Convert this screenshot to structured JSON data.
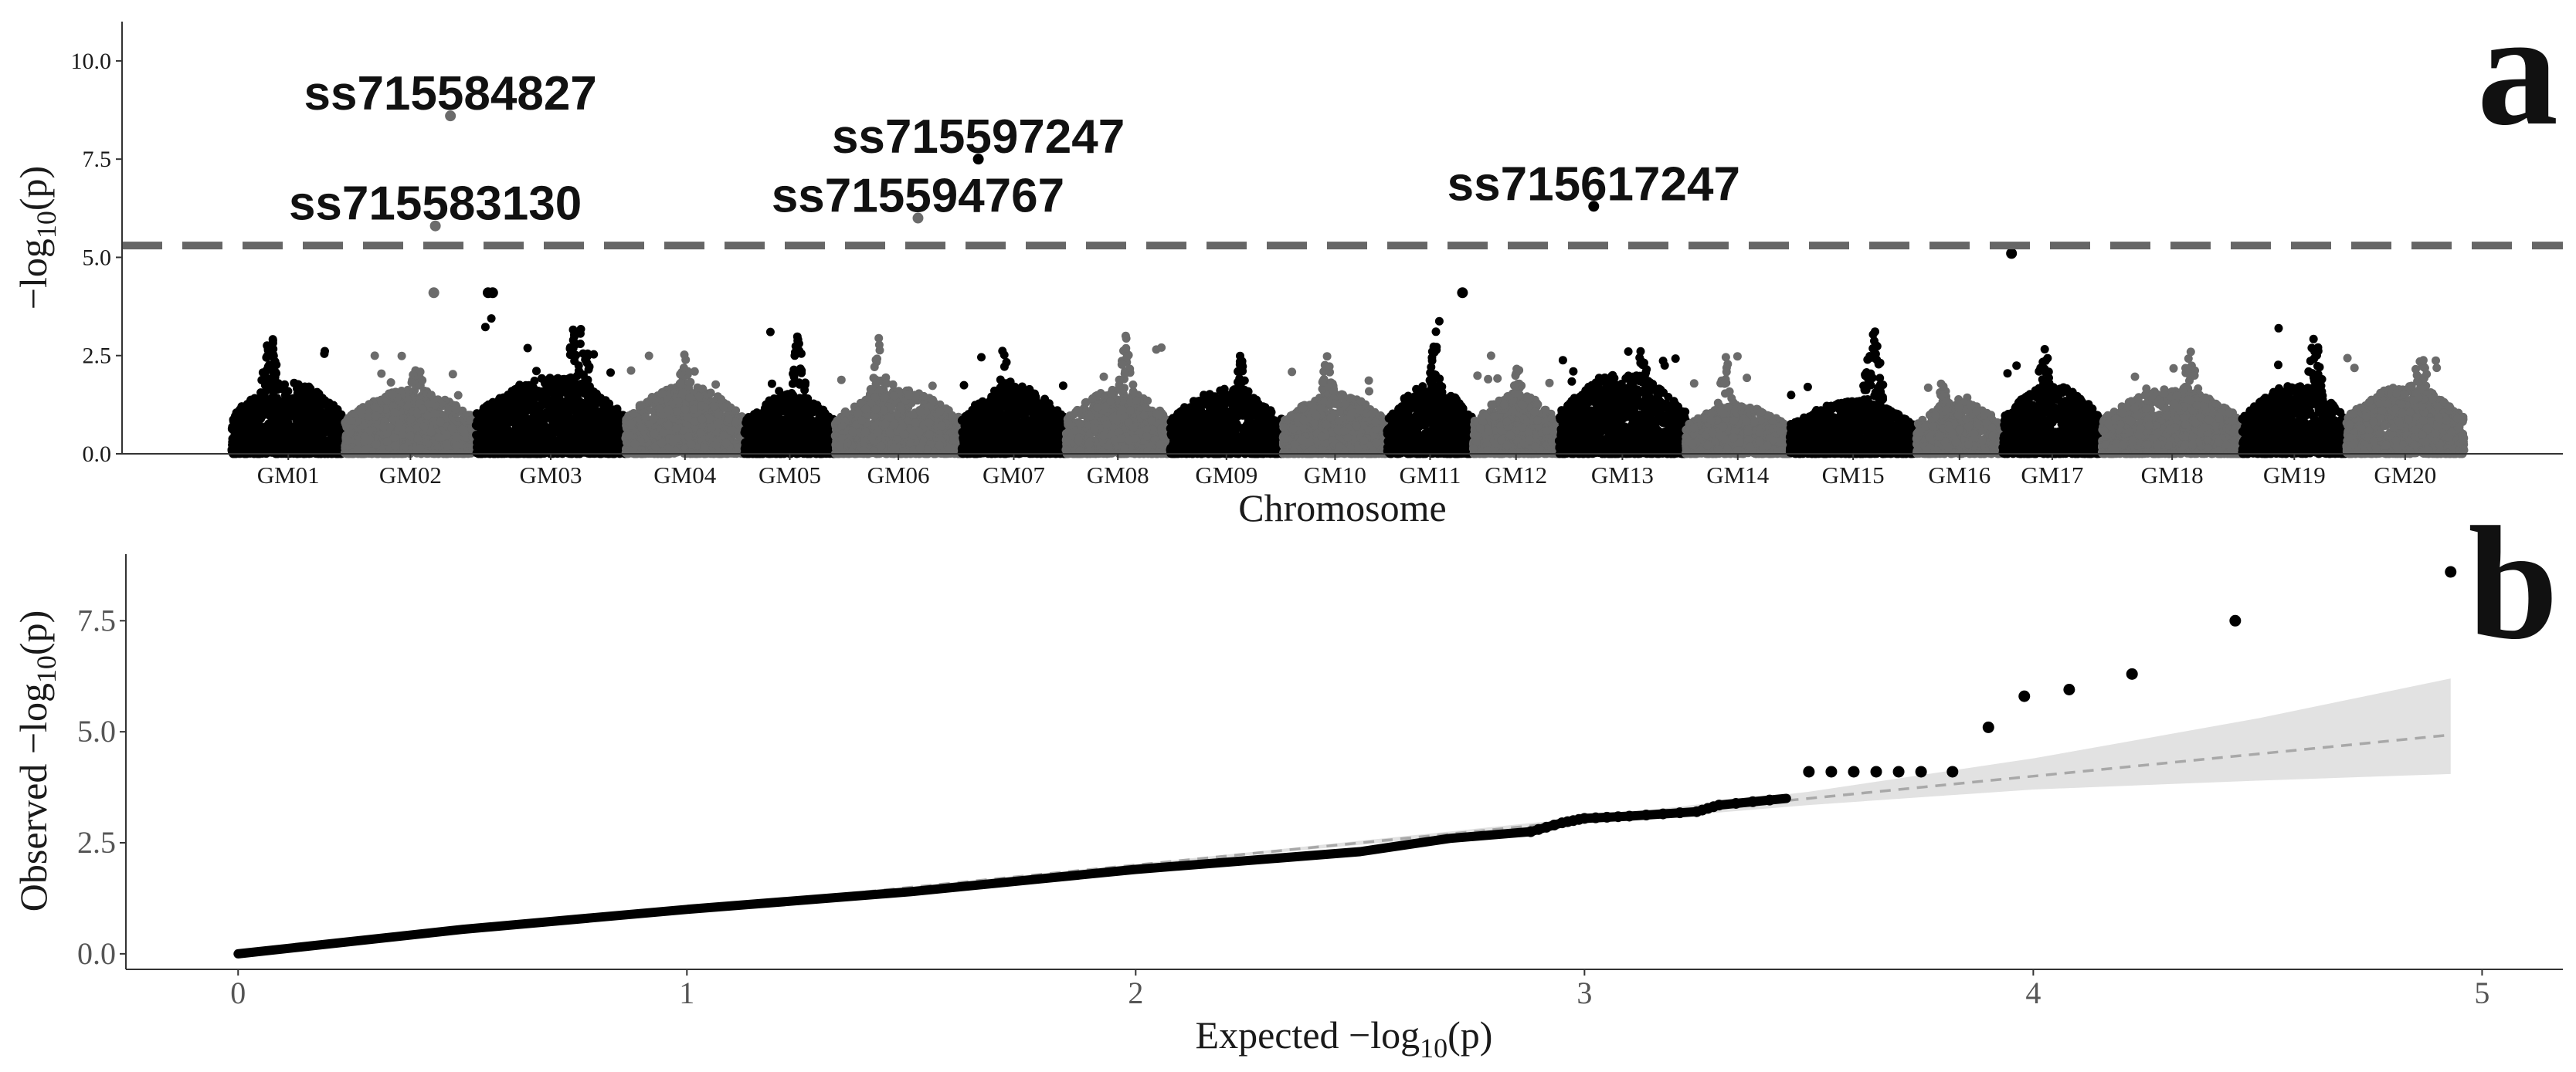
{
  "colors": {
    "odd_chromosome": "#000000",
    "even_chromosome": "#6b6b6b",
    "threshold_line": "#666666",
    "confidence_band": "#e2e2e2",
    "expected_line": "#a8a8a8",
    "qq_points": "#000000"
  },
  "chart_data": [
    {
      "type": "scatter",
      "subtype": "manhattan",
      "panel_label": "a",
      "xlabel": "Chromosome",
      "ylabel": "−log₁₀(p)",
      "ylabel_parts": {
        "prefix": "−log",
        "subscript": "10",
        "suffix": "(p)"
      },
      "ylim": [
        0,
        11
      ],
      "yticks": [
        0.0,
        2.5,
        5.0,
        7.5,
        10.0
      ],
      "ytick_labels": [
        "0.0",
        "2.5",
        "5.0",
        "7.5",
        "10.0"
      ],
      "threshold": 5.3,
      "grid": false,
      "chromosomes": [
        {
          "name": "GM01",
          "start": 0.0,
          "end": 0.75,
          "peak": 3.5,
          "base": 1.6
        },
        {
          "name": "GM02",
          "start": 0.75,
          "end": 1.62,
          "peak": 2.6,
          "base": 1.4
        },
        {
          "name": "GM03",
          "start": 1.62,
          "end": 2.61,
          "peak": 4.1,
          "base": 1.7
        },
        {
          "name": "GM04",
          "start": 2.61,
          "end": 3.4,
          "peak": 2.6,
          "base": 1.5
        },
        {
          "name": "GM05",
          "start": 3.4,
          "end": 4.0,
          "peak": 3.5,
          "base": 1.3
        },
        {
          "name": "GM06",
          "start": 4.0,
          "end": 4.84,
          "peak": 3.0,
          "base": 1.4
        },
        {
          "name": "GM07",
          "start": 4.84,
          "end": 5.53,
          "peak": 2.7,
          "base": 1.5
        },
        {
          "name": "GM08",
          "start": 5.53,
          "end": 6.22,
          "peak": 3.2,
          "base": 1.4
        },
        {
          "name": "GM09",
          "start": 6.22,
          "end": 6.97,
          "peak": 2.7,
          "base": 1.4
        },
        {
          "name": "GM10",
          "start": 6.97,
          "end": 7.66,
          "peak": 2.7,
          "base": 1.3
        },
        {
          "name": "GM11",
          "start": 7.66,
          "end": 8.23,
          "peak": 3.5,
          "base": 1.5
        },
        {
          "name": "GM12",
          "start": 8.23,
          "end": 8.8,
          "peak": 2.5,
          "base": 1.3
        },
        {
          "name": "GM13",
          "start": 8.8,
          "end": 9.64,
          "peak": 2.8,
          "base": 1.8
        },
        {
          "name": "GM14",
          "start": 9.64,
          "end": 10.33,
          "peak": 2.5,
          "base": 1.0
        },
        {
          "name": "GM15",
          "start": 10.33,
          "end": 11.17,
          "peak": 3.4,
          "base": 1.1
        },
        {
          "name": "GM16",
          "start": 11.17,
          "end": 11.74,
          "peak": 2.2,
          "base": 1.1
        },
        {
          "name": "GM17",
          "start": 11.74,
          "end": 12.4,
          "peak": 3.1,
          "base": 1.5
        },
        {
          "name": "GM18",
          "start": 12.4,
          "end": 13.33,
          "peak": 2.7,
          "base": 1.4
        },
        {
          "name": "GM19",
          "start": 13.33,
          "end": 14.02,
          "peak": 3.4,
          "base": 1.5
        },
        {
          "name": "GM20",
          "start": 14.02,
          "end": 14.8,
          "peak": 2.8,
          "base": 1.5
        }
      ],
      "highlighted_snps": [
        {
          "label": "ss715584827",
          "chromosome": "GM02",
          "x": 1.45,
          "y": 8.6
        },
        {
          "label": "ss715583130",
          "chromosome": "GM02",
          "x": 1.35,
          "y": 5.8
        },
        {
          "label": "ss715597247",
          "chromosome": "GM07",
          "x": 4.95,
          "y": 7.5
        },
        {
          "label": "ss715594767",
          "chromosome": "GM06",
          "x": 4.55,
          "y": 6.0
        },
        {
          "label": "ss715617247",
          "chromosome": "GM13",
          "x": 9.03,
          "y": 6.3
        }
      ],
      "notable_points": [
        {
          "x": 1.34,
          "y": 4.1
        },
        {
          "x": 1.7,
          "y": 4.1
        },
        {
          "x": 1.73,
          "y": 4.1
        },
        {
          "x": 8.16,
          "y": 4.1
        },
        {
          "x": 11.8,
          "y": 5.1
        }
      ]
    },
    {
      "type": "scatter",
      "subtype": "qq",
      "panel_label": "b",
      "xlabel": "Expected −log₁₀(p)",
      "xlabel_parts": {
        "prefix": "Expected −log",
        "subscript": "10",
        "suffix": "(p)"
      },
      "ylabel": "Observed −log₁₀(p)",
      "ylabel_parts": {
        "prefix": "Observed −log",
        "subscript": "10",
        "suffix": "(p)"
      },
      "xlim": [
        -0.25,
        5.18
      ],
      "ylim": [
        -0.35,
        9.0
      ],
      "xticks": [
        0,
        1,
        2,
        3,
        4,
        5
      ],
      "xtick_labels": [
        "0",
        "1",
        "2",
        "3",
        "4",
        "5"
      ],
      "yticks": [
        0.0,
        2.5,
        5.0,
        7.5
      ],
      "ytick_labels": [
        "0.0",
        "2.5",
        "5.0",
        "7.5"
      ],
      "grid": false,
      "observed_curve": [
        [
          0.0,
          0.0
        ],
        [
          0.5,
          0.55
        ],
        [
          1.0,
          1.0
        ],
        [
          1.5,
          1.4
        ],
        [
          2.0,
          1.9
        ],
        [
          2.5,
          2.3
        ],
        [
          2.7,
          2.6
        ],
        [
          2.88,
          2.75
        ],
        [
          2.95,
          2.95
        ],
        [
          3.0,
          3.05
        ],
        [
          3.1,
          3.1
        ],
        [
          3.25,
          3.2
        ],
        [
          3.3,
          3.35
        ],
        [
          3.45,
          3.5
        ]
      ],
      "outlier_points": [
        [
          3.5,
          4.1
        ],
        [
          3.55,
          4.1
        ],
        [
          3.6,
          4.1
        ],
        [
          3.65,
          4.1
        ],
        [
          3.7,
          4.1
        ],
        [
          3.75,
          4.1
        ],
        [
          3.82,
          4.1
        ],
        [
          3.9,
          5.1
        ],
        [
          3.98,
          5.8
        ],
        [
          4.08,
          5.95
        ],
        [
          4.22,
          6.3
        ],
        [
          4.45,
          7.5
        ],
        [
          4.93,
          8.6
        ]
      ],
      "expected_line": [
        [
          0,
          0
        ],
        [
          4.93,
          4.93
        ]
      ],
      "confidence_band": {
        "x": [
          0,
          2,
          3,
          3.5,
          4,
          4.5,
          4.93
        ],
        "lower": [
          0,
          1.98,
          2.93,
          3.35,
          3.7,
          3.9,
          4.05
        ],
        "upper": [
          0,
          2.02,
          3.07,
          3.65,
          4.4,
          5.3,
          6.2
        ]
      }
    }
  ]
}
